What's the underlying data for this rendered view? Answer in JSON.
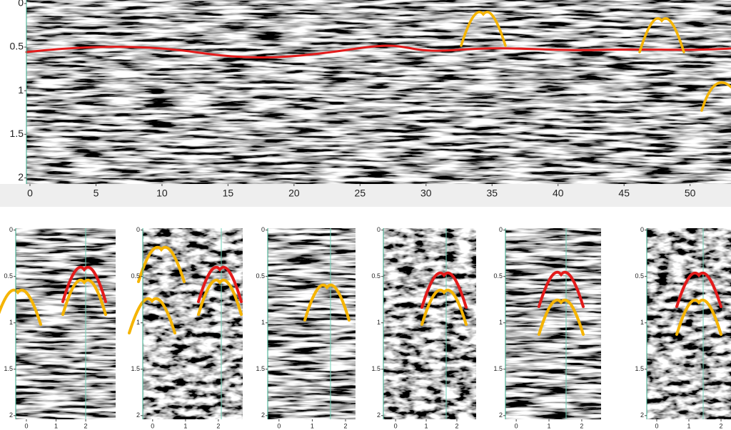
{
  "main": {
    "xlim": [
      -0.27,
      53.1
    ],
    "ylim": [
      -0.04,
      2.07
    ],
    "xticks": [
      0,
      5,
      10,
      15,
      20,
      25,
      30,
      35,
      40,
      45,
      50
    ],
    "yticks": [
      0,
      0.5,
      1,
      1.5,
      2
    ]
  },
  "insets": [
    {
      "xlim": [
        -0.36,
        3.01
      ],
      "ylim": [
        -0.02,
        2.04
      ],
      "xticks": [
        0,
        1,
        2
      ],
      "yticks": [
        0,
        0.5,
        1,
        1.5,
        2
      ]
    },
    {
      "xlim": [
        -0.3,
        2.74
      ],
      "ylim": [
        -0.02,
        2.04
      ],
      "xticks": [
        0,
        1,
        2
      ],
      "yticks": [
        0,
        0.5,
        1,
        1.5,
        2
      ]
    },
    {
      "xlim": [
        -0.34,
        2.3
      ],
      "ylim": [
        -0.02,
        2.04
      ],
      "xticks": [
        0,
        1,
        2
      ],
      "yticks": [
        0,
        0.5,
        1,
        1.5,
        2
      ]
    },
    {
      "xlim": [
        -0.4,
        2.63
      ],
      "ylim": [
        -0.02,
        2.04
      ],
      "xticks": [
        0,
        1,
        2
      ],
      "yticks": [
        0,
        0.5,
        1,
        1.5,
        2
      ]
    },
    {
      "xlim": [
        -0.33,
        2.59
      ],
      "ylim": [
        -0.02,
        2.04
      ],
      "xticks": [
        0,
        1,
        2
      ],
      "yticks": [
        0,
        0.5,
        1,
        1.5,
        2
      ]
    },
    {
      "xlim": [
        -0.31,
        2.31
      ],
      "ylim": [
        -0.02,
        2.04
      ],
      "xticks": [
        0,
        1,
        2
      ],
      "yticks": [
        0,
        0.5,
        1,
        1.5,
        2
      ]
    }
  ]
}
